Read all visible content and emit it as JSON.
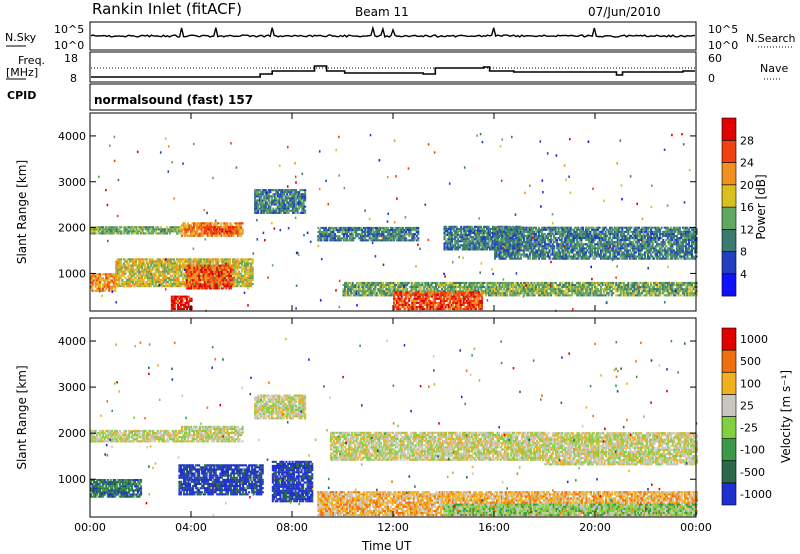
{
  "header": {
    "station": "Rankin Inlet (fitACF)",
    "beam": "Beam 11",
    "date": "07/Jun/2010"
  },
  "top_panels": {
    "nsky_label": "N.Sky",
    "nsky_ticks": [
      "10^5",
      "10^0"
    ],
    "nsearch_label": "N.Search",
    "freq_label_1": "Freq.",
    "freq_label_2": "[MHz]",
    "freq_ticks": [
      "18",
      "8"
    ],
    "nave_label": "Nave",
    "nave_ticks": [
      "60",
      "0"
    ],
    "cpid_label": "CPID",
    "cpid_value": "normalsound (fast) 157"
  },
  "chart_data": [
    {
      "type": "heatmap",
      "name": "power",
      "ylabel": "Slant Range [km]",
      "xlabel": "Time UT",
      "xlim": [
        0,
        24
      ],
      "ylim": [
        180,
        4500
      ],
      "x_tick_labels": [
        "00:00",
        "04:00",
        "08:00",
        "12:00",
        "16:00",
        "20:00",
        "00:00"
      ],
      "y_tick_labels": [
        "1000",
        "2000",
        "3000",
        "4000"
      ],
      "y_ticks": [
        1000,
        2000,
        3000,
        4000
      ],
      "colorbar": {
        "label": "Power [dB]",
        "tick_labels": [
          "4",
          "8",
          "12",
          "16",
          "20",
          "24",
          "28"
        ],
        "colors": [
          "#1010ff",
          "#2040c0",
          "#3a7a70",
          "#60a860",
          "#d8c020",
          "#f09020",
          "#f04010",
          "#e00000"
        ]
      },
      "echo_regions": [
        {
          "t0": 0.0,
          "t1": 3.6,
          "r0": 1850,
          "r1": 2000,
          "level": 3
        },
        {
          "t0": 3.6,
          "t1": 6.0,
          "r0": 1800,
          "r1": 2100,
          "level": 5
        },
        {
          "t0": 4.5,
          "t1": 5.8,
          "r0": 1850,
          "r1": 2000,
          "level": 6
        },
        {
          "t0": 0.0,
          "t1": 1.0,
          "r0": 600,
          "r1": 1000,
          "level": 5
        },
        {
          "t0": 1.0,
          "t1": 6.4,
          "r0": 700,
          "r1": 1300,
          "level": 4
        },
        {
          "t0": 3.8,
          "t1": 5.6,
          "r0": 650,
          "r1": 1150,
          "level": 6
        },
        {
          "t0": 6.5,
          "t1": 8.5,
          "r0": 2300,
          "r1": 2800,
          "level": 2
        },
        {
          "t0": 9.0,
          "t1": 13.0,
          "r0": 1700,
          "r1": 2000,
          "level": 2
        },
        {
          "t0": 10.0,
          "t1": 24.0,
          "r0": 500,
          "r1": 800,
          "level": 3
        },
        {
          "t0": 12.0,
          "t1": 15.5,
          "r0": 200,
          "r1": 600,
          "level": 6
        },
        {
          "t0": 14.0,
          "t1": 17.0,
          "r0": 1500,
          "r1": 2000,
          "level": 2
        },
        {
          "t0": 16.0,
          "t1": 24.0,
          "r0": 1300,
          "r1": 2000,
          "level": 2
        },
        {
          "t0": 3.2,
          "t1": 4.0,
          "r0": 200,
          "r1": 500,
          "level": 7
        }
      ]
    },
    {
      "type": "heatmap",
      "name": "velocity",
      "ylabel": "Slant Range [km]",
      "xlabel": "Time UT",
      "xlim": [
        0,
        24
      ],
      "ylim": [
        180,
        4500
      ],
      "x_tick_labels": [
        "00:00",
        "04:00",
        "08:00",
        "12:00",
        "16:00",
        "20:00",
        "00:00"
      ],
      "y_tick_labels": [
        "1000",
        "2000",
        "3000",
        "4000"
      ],
      "y_ticks": [
        1000,
        2000,
        3000,
        4000
      ],
      "colorbar": {
        "label": "Velocity [m s⁻¹]",
        "tick_labels": [
          "1000",
          "500",
          "100",
          "25",
          "-25",
          "-100",
          "-500",
          "-1000"
        ],
        "colors": [
          "#2030d0",
          "#2a6a4a",
          "#3a9a4a",
          "#80d040",
          "#c8c8c0",
          "#f0b020",
          "#f07010",
          "#e00000"
        ]
      },
      "echo_regions": [
        {
          "t0": 0.0,
          "t1": 3.6,
          "r0": 1800,
          "r1": 2050,
          "level": 4
        },
        {
          "t0": 3.6,
          "t1": 6.0,
          "r0": 1800,
          "r1": 2150,
          "level": 4
        },
        {
          "t0": 6.5,
          "t1": 8.5,
          "r0": 2300,
          "r1": 2800,
          "level": 4
        },
        {
          "t0": 0.0,
          "t1": 2.0,
          "r0": 600,
          "r1": 1000,
          "level": 1
        },
        {
          "t0": 3.5,
          "t1": 6.8,
          "r0": 650,
          "r1": 1300,
          "level": 0
        },
        {
          "t0": 7.2,
          "t1": 8.8,
          "r0": 500,
          "r1": 1400,
          "level": 0
        },
        {
          "t0": 9.0,
          "t1": 24.0,
          "r0": 200,
          "r1": 700,
          "level": 5
        },
        {
          "t0": 9.5,
          "t1": 18.0,
          "r0": 1400,
          "r1": 2000,
          "level": 4
        },
        {
          "t0": 18.0,
          "t1": 24.0,
          "r0": 1300,
          "r1": 2000,
          "level": 4
        },
        {
          "t0": 14.0,
          "t1": 24.0,
          "r0": 200,
          "r1": 450,
          "level": 3
        }
      ]
    }
  ]
}
